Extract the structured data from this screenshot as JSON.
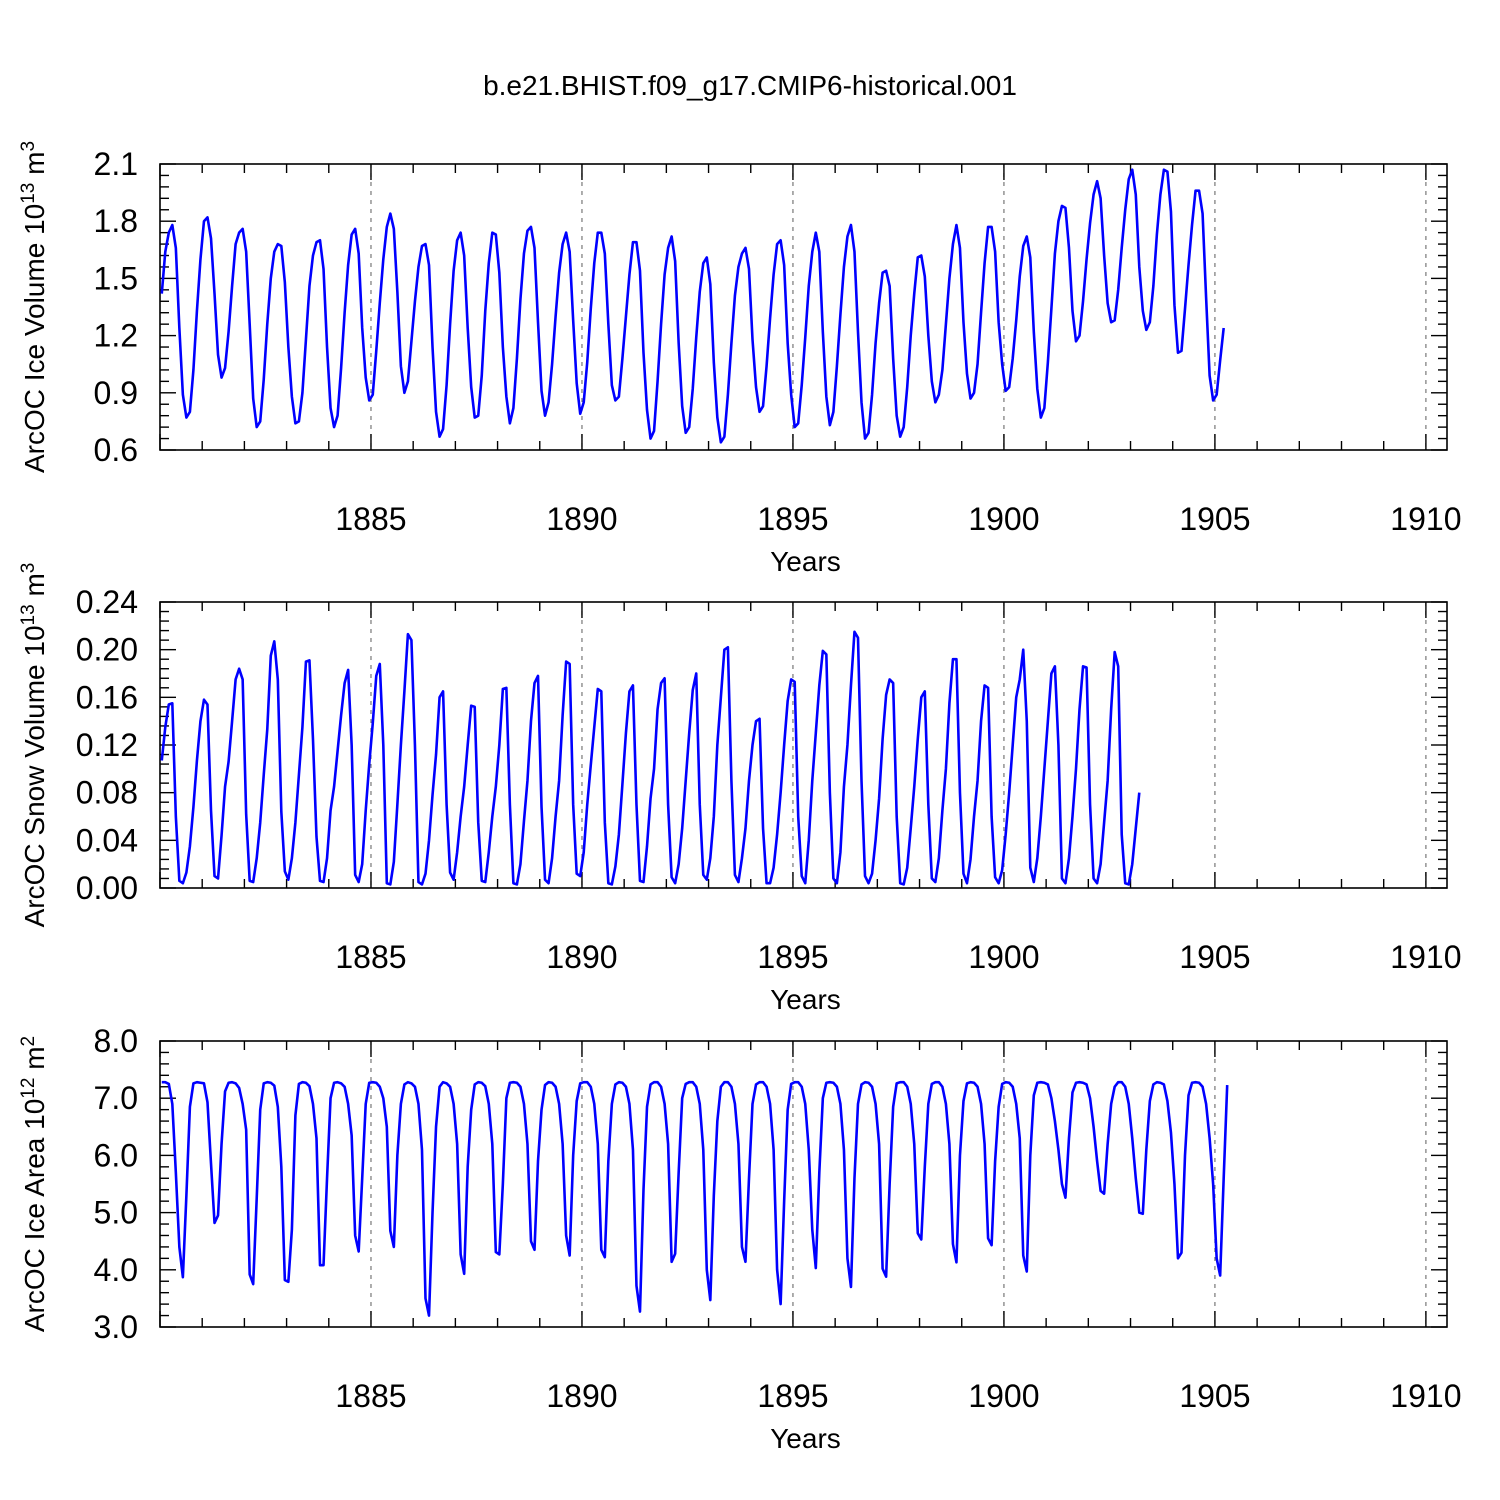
{
  "title": "b.e21.BHIST.f09_g17.CMIP6-historical.001",
  "colors": {
    "line": "#0000ff",
    "axes": "#000000",
    "grid": "#777777"
  },
  "chart_data": [
    {
      "type": "line",
      "xlabel": "Years",
      "ylabel": {
        "main": "ArcOC Ice Volume 10",
        "exp": "13",
        "unit": " m",
        "unit_exp": "3"
      },
      "xlim": [
        1880.0,
        1910.5
      ],
      "ylim": [
        0.6,
        2.1
      ],
      "xticks": [
        "1885",
        "1890",
        "1895",
        "1900",
        "1905",
        "1910"
      ],
      "yticks": [
        "0.6",
        "0.9",
        "1.2",
        "1.5",
        "1.8",
        "2.1"
      ],
      "grid": "dashed vertical at major x ticks",
      "series": [
        {
          "x_start": 1880.042,
          "x_step": 0.08333,
          "values": [
            1.42,
            1.64,
            1.74,
            1.78,
            1.66,
            1.24,
            0.89,
            0.77,
            0.8,
            1.02,
            1.33,
            1.6,
            1.8,
            1.82,
            1.71,
            1.42,
            1.1,
            0.98,
            1.03,
            1.22,
            1.46,
            1.68,
            1.74,
            1.76,
            1.64,
            1.26,
            0.87,
            0.72,
            0.75,
            0.97,
            1.26,
            1.5,
            1.64,
            1.68,
            1.67,
            1.48,
            1.14,
            0.88,
            0.74,
            0.75,
            0.9,
            1.18,
            1.46,
            1.62,
            1.69,
            1.7,
            1.55,
            1.14,
            0.82,
            0.72,
            0.78,
            1.03,
            1.32,
            1.57,
            1.73,
            1.76,
            1.63,
            1.24,
            0.98,
            0.86,
            0.89,
            1.12,
            1.37,
            1.6,
            1.77,
            1.84,
            1.76,
            1.43,
            1.04,
            0.9,
            0.96,
            1.17,
            1.38,
            1.56,
            1.67,
            1.68,
            1.57,
            1.14,
            0.8,
            0.67,
            0.71,
            0.94,
            1.26,
            1.54,
            1.7,
            1.74,
            1.62,
            1.24,
            0.93,
            0.77,
            0.78,
            0.99,
            1.33,
            1.58,
            1.74,
            1.73,
            1.53,
            1.14,
            0.88,
            0.74,
            0.82,
            1.08,
            1.39,
            1.63,
            1.75,
            1.77,
            1.66,
            1.27,
            0.91,
            0.78,
            0.85,
            1.05,
            1.3,
            1.53,
            1.68,
            1.74,
            1.64,
            1.28,
            0.95,
            0.79,
            0.85,
            1.06,
            1.34,
            1.58,
            1.74,
            1.74,
            1.63,
            1.26,
            0.94,
            0.86,
            0.88,
            1.08,
            1.3,
            1.52,
            1.69,
            1.69,
            1.54,
            1.11,
            0.81,
            0.66,
            0.7,
            0.96,
            1.26,
            1.52,
            1.66,
            1.72,
            1.59,
            1.16,
            0.83,
            0.69,
            0.72,
            0.92,
            1.19,
            1.43,
            1.58,
            1.61,
            1.47,
            1.06,
            0.77,
            0.64,
            0.67,
            0.89,
            1.16,
            1.41,
            1.56,
            1.63,
            1.66,
            1.55,
            1.18,
            0.93,
            0.8,
            0.83,
            1.04,
            1.29,
            1.52,
            1.68,
            1.7,
            1.57,
            1.16,
            0.89,
            0.72,
            0.74,
            0.94,
            1.19,
            1.46,
            1.64,
            1.74,
            1.64,
            1.22,
            0.88,
            0.73,
            0.8,
            1.04,
            1.31,
            1.56,
            1.72,
            1.78,
            1.64,
            1.22,
            0.85,
            0.66,
            0.69,
            0.89,
            1.16,
            1.37,
            1.53,
            1.54,
            1.46,
            1.08,
            0.78,
            0.67,
            0.72,
            0.93,
            1.2,
            1.42,
            1.61,
            1.62,
            1.51,
            1.2,
            0.96,
            0.85,
            0.89,
            1.02,
            1.26,
            1.5,
            1.68,
            1.78,
            1.66,
            1.27,
            1.0,
            0.87,
            0.9,
            1.05,
            1.32,
            1.58,
            1.77,
            1.77,
            1.64,
            1.27,
            1.05,
            0.91,
            0.93,
            1.08,
            1.28,
            1.51,
            1.67,
            1.72,
            1.61,
            1.22,
            0.92,
            0.77,
            0.82,
            1.06,
            1.34,
            1.63,
            1.8,
            1.88,
            1.87,
            1.66,
            1.33,
            1.17,
            1.2,
            1.38,
            1.6,
            1.79,
            1.94,
            2.01,
            1.92,
            1.62,
            1.37,
            1.27,
            1.28,
            1.44,
            1.66,
            1.86,
            2.02,
            2.07,
            1.94,
            1.56,
            1.33,
            1.23,
            1.27,
            1.46,
            1.73,
            1.94,
            2.07,
            2.06,
            1.85,
            1.36,
            1.11,
            1.12,
            1.34,
            1.57,
            1.78,
            1.96,
            1.96,
            1.84,
            1.4,
            0.99,
            0.86,
            0.89,
            1.07,
            1.24
          ]
        }
      ]
    },
    {
      "type": "line",
      "xlabel": "Years",
      "ylabel": {
        "main": "ArcOC Snow Volume 10",
        "exp": "13",
        "unit": " m",
        "unit_exp": "3"
      },
      "xlim": [
        1880.0,
        1910.5
      ],
      "ylim": [
        0.0,
        0.24
      ],
      "xticks": [
        "1885",
        "1890",
        "1895",
        "1900",
        "1905",
        "1910"
      ],
      "yticks": [
        "0.00",
        "0.04",
        "0.08",
        "0.12",
        "0.16",
        "0.20",
        "0.24"
      ],
      "grid": "dashed vertical at major x ticks",
      "series": [
        {
          "x_start": 1880.042,
          "x_step": 0.08333,
          "values": [
            0.107,
            0.135,
            0.154,
            0.155,
            0.06,
            0.006,
            0.004,
            0.013,
            0.035,
            0.068,
            0.107,
            0.14,
            0.158,
            0.154,
            0.065,
            0.01,
            0.008,
            0.044,
            0.085,
            0.106,
            0.14,
            0.175,
            0.184,
            0.175,
            0.062,
            0.006,
            0.005,
            0.025,
            0.055,
            0.095,
            0.133,
            0.195,
            0.207,
            0.175,
            0.064,
            0.014,
            0.007,
            0.025,
            0.055,
            0.095,
            0.135,
            0.19,
            0.191,
            0.125,
            0.043,
            0.006,
            0.005,
            0.025,
            0.065,
            0.085,
            0.115,
            0.145,
            0.172,
            0.183,
            0.12,
            0.011,
            0.005,
            0.02,
            0.065,
            0.104,
            0.138,
            0.178,
            0.188,
            0.12,
            0.004,
            0.003,
            0.022,
            0.07,
            0.12,
            0.165,
            0.213,
            0.208,
            0.12,
            0.005,
            0.003,
            0.012,
            0.04,
            0.078,
            0.112,
            0.16,
            0.165,
            0.07,
            0.013,
            0.007,
            0.03,
            0.06,
            0.085,
            0.12,
            0.153,
            0.152,
            0.055,
            0.006,
            0.005,
            0.03,
            0.06,
            0.085,
            0.12,
            0.167,
            0.168,
            0.07,
            0.004,
            0.003,
            0.02,
            0.056,
            0.09,
            0.14,
            0.172,
            0.178,
            0.068,
            0.007,
            0.004,
            0.025,
            0.06,
            0.09,
            0.145,
            0.19,
            0.188,
            0.07,
            0.012,
            0.01,
            0.03,
            0.07,
            0.103,
            0.135,
            0.167,
            0.165,
            0.055,
            0.004,
            0.003,
            0.018,
            0.045,
            0.087,
            0.13,
            0.165,
            0.17,
            0.07,
            0.006,
            0.005,
            0.035,
            0.075,
            0.1,
            0.15,
            0.172,
            0.176,
            0.07,
            0.009,
            0.004,
            0.02,
            0.05,
            0.09,
            0.13,
            0.166,
            0.18,
            0.07,
            0.011,
            0.007,
            0.025,
            0.06,
            0.12,
            0.16,
            0.2,
            0.202,
            0.09,
            0.011,
            0.005,
            0.025,
            0.05,
            0.09,
            0.12,
            0.14,
            0.142,
            0.05,
            0.004,
            0.004,
            0.017,
            0.045,
            0.08,
            0.12,
            0.157,
            0.175,
            0.173,
            0.06,
            0.01,
            0.004,
            0.04,
            0.09,
            0.13,
            0.17,
            0.199,
            0.196,
            0.08,
            0.008,
            0.004,
            0.03,
            0.085,
            0.12,
            0.17,
            0.215,
            0.21,
            0.09,
            0.01,
            0.004,
            0.012,
            0.04,
            0.075,
            0.125,
            0.162,
            0.175,
            0.172,
            0.06,
            0.004,
            0.003,
            0.017,
            0.05,
            0.085,
            0.125,
            0.16,
            0.165,
            0.07,
            0.008,
            0.005,
            0.025,
            0.065,
            0.1,
            0.155,
            0.192,
            0.192,
            0.08,
            0.012,
            0.004,
            0.024,
            0.06,
            0.09,
            0.14,
            0.17,
            0.168,
            0.06,
            0.009,
            0.004,
            0.015,
            0.045,
            0.08,
            0.12,
            0.16,
            0.175,
            0.2,
            0.14,
            0.017,
            0.005,
            0.025,
            0.06,
            0.1,
            0.14,
            0.18,
            0.186,
            0.12,
            0.008,
            0.004,
            0.025,
            0.06,
            0.1,
            0.15,
            0.186,
            0.185,
            0.07,
            0.008,
            0.004,
            0.02,
            0.055,
            0.09,
            0.15,
            0.198,
            0.186,
            0.045,
            0.004,
            0.003,
            0.02,
            0.05,
            0.08
          ]
        }
      ]
    },
    {
      "type": "line",
      "xlabel": "Years",
      "ylabel": {
        "main": "ArcOC Ice Area 10",
        "exp": "12",
        "unit": " m",
        "unit_exp": "2"
      },
      "xlim": [
        1880.0,
        1910.5
      ],
      "ylim": [
        3.0,
        8.0
      ],
      "xticks": [
        "1885",
        "1890",
        "1895",
        "1900",
        "1905",
        "1910"
      ],
      "yticks": [
        "3.0",
        "4.0",
        "5.0",
        "6.0",
        "7.0",
        "8.0"
      ],
      "grid": "dashed vertical at major x ticks",
      "series": [
        {
          "x_start": 1880.042,
          "x_step": 0.08333,
          "values": [
            7.28,
            7.28,
            7.25,
            6.9,
            5.7,
            4.4,
            3.87,
            5.3,
            6.85,
            7.26,
            7.28,
            7.27,
            7.26,
            6.93,
            5.86,
            4.82,
            4.95,
            6.2,
            7.12,
            7.27,
            7.28,
            7.26,
            7.18,
            6.9,
            6.45,
            3.92,
            3.75,
            5.25,
            6.8,
            7.26,
            7.28,
            7.27,
            7.22,
            6.85,
            5.8,
            3.82,
            3.79,
            4.7,
            6.7,
            7.25,
            7.28,
            7.27,
            7.21,
            6.9,
            6.3,
            4.08,
            4.08,
            5.6,
            7.0,
            7.27,
            7.28,
            7.26,
            7.2,
            6.9,
            6.35,
            4.6,
            4.32,
            5.6,
            6.9,
            7.27,
            7.28,
            7.27,
            7.2,
            7.0,
            6.5,
            4.68,
            4.4,
            6.0,
            6.9,
            7.24,
            7.28,
            7.26,
            7.2,
            6.9,
            6.1,
            3.5,
            3.2,
            5.0,
            6.5,
            7.2,
            7.28,
            7.26,
            7.2,
            6.9,
            6.2,
            4.27,
            3.93,
            5.8,
            6.8,
            7.24,
            7.28,
            7.27,
            7.21,
            6.9,
            6.2,
            4.31,
            4.27,
            5.5,
            7.0,
            7.27,
            7.28,
            7.27,
            7.2,
            6.9,
            6.2,
            4.5,
            4.35,
            5.9,
            6.8,
            7.23,
            7.28,
            7.27,
            7.2,
            6.9,
            6.2,
            4.6,
            4.25,
            6.0,
            6.95,
            7.26,
            7.28,
            7.28,
            7.2,
            6.9,
            6.2,
            4.35,
            4.22,
            5.9,
            6.9,
            7.24,
            7.28,
            7.27,
            7.2,
            6.9,
            6.1,
            3.72,
            3.27,
            5.4,
            6.85,
            7.24,
            7.28,
            7.28,
            7.2,
            6.9,
            6.2,
            4.14,
            4.28,
            5.7,
            7.0,
            7.25,
            7.28,
            7.28,
            7.2,
            6.9,
            6.1,
            4.0,
            3.47,
            5.3,
            6.6,
            7.2,
            7.28,
            7.28,
            7.2,
            6.9,
            6.2,
            4.4,
            4.14,
            5.6,
            6.9,
            7.24,
            7.28,
            7.28,
            7.2,
            6.9,
            6.1,
            4.0,
            3.4,
            5.2,
            6.8,
            7.25,
            7.28,
            7.28,
            7.2,
            6.9,
            6.1,
            4.7,
            4.03,
            5.7,
            7.0,
            7.27,
            7.28,
            7.27,
            7.2,
            6.9,
            6.1,
            4.2,
            3.7,
            5.6,
            6.9,
            7.24,
            7.28,
            7.27,
            7.2,
            6.9,
            6.2,
            4.02,
            3.88,
            5.5,
            6.85,
            7.26,
            7.28,
            7.28,
            7.2,
            6.9,
            6.2,
            4.64,
            4.53,
            5.8,
            6.9,
            7.25,
            7.28,
            7.28,
            7.2,
            6.9,
            6.2,
            4.45,
            4.13,
            6.0,
            6.95,
            7.26,
            7.28,
            7.27,
            7.2,
            6.9,
            6.2,
            4.55,
            4.43,
            5.9,
            6.85,
            7.25,
            7.28,
            7.27,
            7.2,
            6.9,
            6.3,
            4.25,
            3.97,
            6.0,
            7.05,
            7.27,
            7.28,
            7.27,
            7.24,
            7.0,
            6.6,
            6.1,
            5.5,
            5.26,
            6.3,
            7.1,
            7.27,
            7.28,
            7.27,
            7.24,
            7.0,
            6.5,
            5.9,
            5.38,
            5.33,
            6.2,
            6.9,
            7.2,
            7.28,
            7.28,
            7.2,
            6.9,
            6.3,
            5.6,
            5.0,
            4.98,
            6.1,
            6.95,
            7.24,
            7.28,
            7.27,
            7.24,
            6.95,
            6.4,
            5.5,
            4.2,
            4.3,
            6.0,
            7.05,
            7.27,
            7.28,
            7.27,
            7.2,
            6.9,
            6.3,
            5.5,
            4.2,
            3.9,
            5.6,
            7.23
          ]
        }
      ]
    }
  ]
}
